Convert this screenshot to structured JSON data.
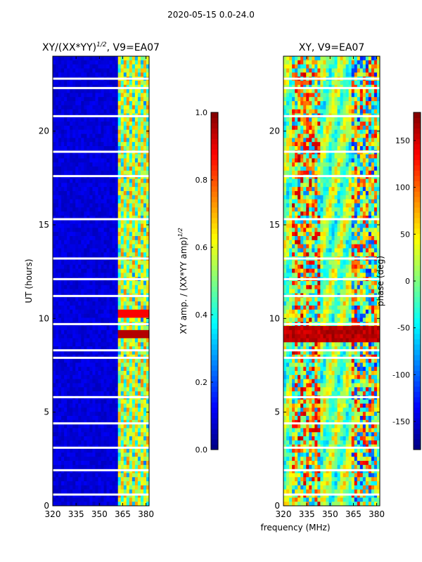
{
  "figure": {
    "suptitle": "2020-05-15 0.0-24.0",
    "common_xlabel": "frequency (MHz)"
  },
  "chart_data": [
    {
      "type": "heatmap",
      "title_text": "XY/(XX*YY)",
      "title_superscript": "1/2",
      "title_suffix": ", V9=EA07",
      "xlabel": "",
      "ylabel": "UT (hours)",
      "xlim": [
        320,
        382
      ],
      "ylim": [
        0,
        24
      ],
      "xticks": [
        "320",
        "335",
        "350",
        "365",
        "380"
      ],
      "yticks": [
        "0",
        "5",
        "10",
        "15",
        "20"
      ],
      "colorbar": {
        "label_text": "XY amp. / (XX*YY amp)",
        "label_superscript": "1/2",
        "range": [
          0.0,
          1.0
        ],
        "ticks": [
          "0.0",
          "0.2",
          "0.4",
          "0.6",
          "0.8",
          "1.0"
        ],
        "colormap": "jet"
      }
    },
    {
      "type": "heatmap",
      "title_text": "XY, V9=EA07",
      "xlabel": "frequency (MHz)",
      "ylabel": "",
      "xlim": [
        320,
        382
      ],
      "ylim": [
        0,
        24
      ],
      "xticks": [
        "320",
        "335",
        "350",
        "365",
        "380"
      ],
      "yticks": [
        "0",
        "5",
        "10",
        "15",
        "20"
      ],
      "colorbar": {
        "label_text": "phase (deg)",
        "range": [
          -180,
          180
        ],
        "ticks": [
          "-150",
          "-100",
          "-50",
          "0",
          "50",
          "100",
          "150"
        ],
        "colormap": "jet"
      }
    }
  ],
  "colors": {
    "jet_dark_blue": "#00007f",
    "jet_red": "#7f0000",
    "axis": "#000000"
  }
}
